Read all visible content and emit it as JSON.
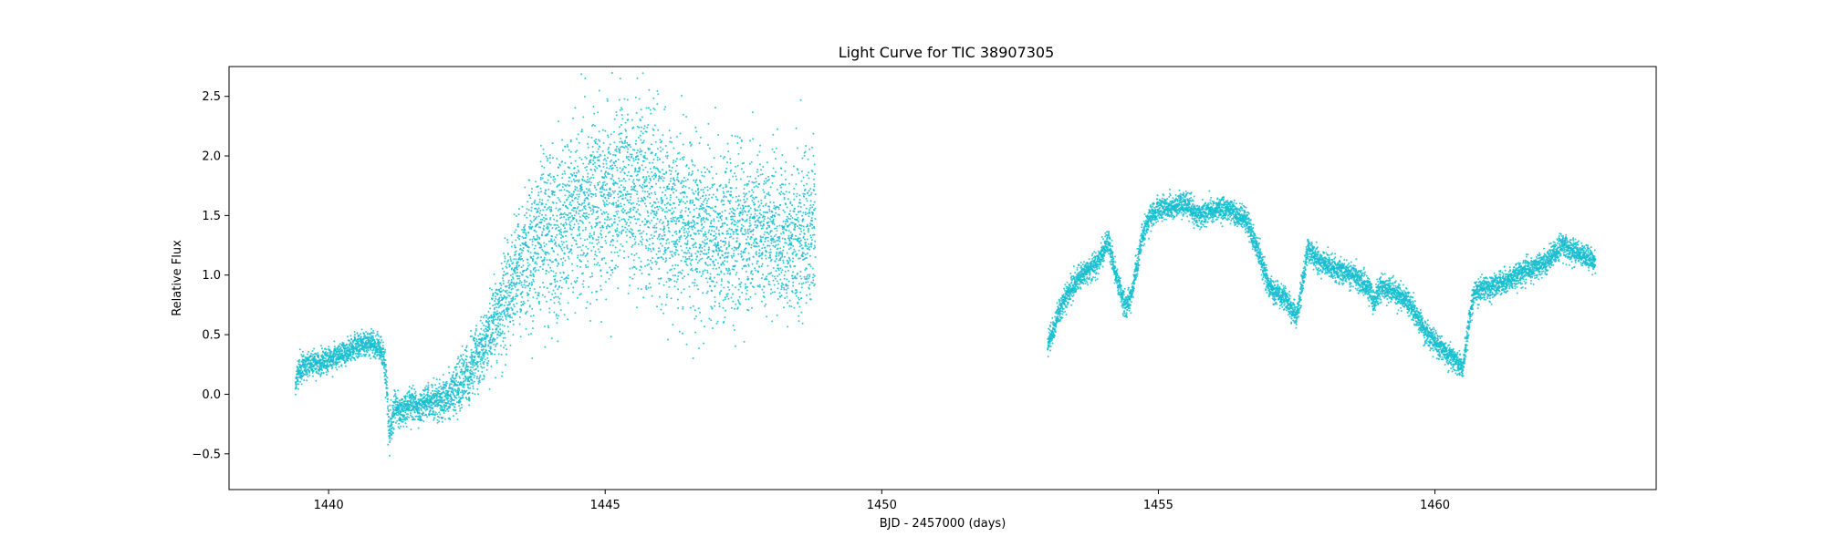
{
  "chart_data": {
    "type": "scatter",
    "title": "Light Curve for TIC 38907305",
    "xlabel": "BJD - 2457000 (days)",
    "ylabel": "Relative Flux",
    "xlim": [
      1438.2,
      1464.0
    ],
    "ylim": [
      -0.8,
      2.75
    ],
    "xticks": [
      1440,
      1445,
      1450,
      1455,
      1460
    ],
    "yticks": [
      -0.5,
      0.0,
      0.5,
      1.0,
      1.5,
      2.0,
      2.5
    ],
    "grid": false,
    "legend": "none",
    "marker_color": "#17becf",
    "series": [
      {
        "name": "",
        "segments": [
          {
            "x": [
              1439.4,
              1439.45,
              1439.5,
              1439.7,
              1440.0,
              1440.3,
              1440.5,
              1440.7,
              1440.9,
              1441.0,
              1441.05,
              1441.1,
              1441.2,
              1441.35,
              1441.5,
              1441.6,
              1441.8,
              1442.0,
              1442.2,
              1442.5,
              1442.8,
              1443.1,
              1443.4,
              1443.7,
              1444.0,
              1444.1,
              1444.2,
              1444.4,
              1444.7,
              1445.0,
              1445.3,
              1445.6,
              1445.9,
              1446.2,
              1446.5,
              1446.8,
              1447.1,
              1447.4,
              1447.7,
              1448.0,
              1448.3,
              1448.6,
              1448.8
            ],
            "y": [
              0.05,
              0.2,
              0.22,
              0.25,
              0.28,
              0.35,
              0.4,
              0.42,
              0.4,
              0.3,
              0.05,
              -0.35,
              -0.1,
              -0.15,
              -0.08,
              -0.12,
              -0.05,
              -0.08,
              0.0,
              0.15,
              0.4,
              0.7,
              1.0,
              1.25,
              1.4,
              1.3,
              1.45,
              1.55,
              1.6,
              1.65,
              1.68,
              1.65,
              1.6,
              1.5,
              1.4,
              1.35,
              1.3,
              1.38,
              1.4,
              1.35,
              1.3,
              1.32,
              1.4
            ],
            "scatter": [
              0.06,
              0.06,
              0.06,
              0.05,
              0.05,
              0.05,
              0.05,
              0.05,
              0.05,
              0.06,
              0.1,
              0.08,
              0.07,
              0.07,
              0.07,
              0.07,
              0.07,
              0.08,
              0.1,
              0.12,
              0.15,
              0.2,
              0.25,
              0.3,
              0.35,
              0.35,
              0.35,
              0.35,
              0.35,
              0.38,
              0.38,
              0.38,
              0.38,
              0.36,
              0.35,
              0.35,
              0.35,
              0.35,
              0.33,
              0.32,
              0.32,
              0.32,
              0.3
            ]
          },
          {
            "x": [
              1453.0,
              1453.1,
              1453.3,
              1453.6,
              1453.9,
              1454.1,
              1454.2,
              1454.4,
              1454.5,
              1454.7,
              1454.8,
              1455.0,
              1455.3,
              1455.5,
              1455.7,
              1456.0,
              1456.3,
              1456.6,
              1456.8,
              1457.0,
              1457.3,
              1457.5,
              1457.6,
              1457.7,
              1457.9,
              1458.2,
              1458.5,
              1458.8,
              1458.9,
              1459.0,
              1459.2,
              1459.5,
              1459.8,
              1460.1,
              1460.4,
              1460.5,
              1460.6,
              1460.7,
              1461.0,
              1461.3,
              1461.7,
              1462.0,
              1462.3,
              1462.6,
              1462.9
            ],
            "y": [
              0.4,
              0.55,
              0.8,
              1.0,
              1.1,
              1.3,
              1.05,
              0.75,
              0.8,
              1.3,
              1.45,
              1.55,
              1.58,
              1.6,
              1.5,
              1.55,
              1.55,
              1.45,
              1.2,
              0.9,
              0.8,
              0.65,
              0.9,
              1.22,
              1.12,
              1.05,
              1.0,
              0.9,
              0.75,
              0.9,
              0.88,
              0.78,
              0.55,
              0.38,
              0.28,
              0.2,
              0.55,
              0.85,
              0.9,
              0.95,
              1.05,
              1.1,
              1.25,
              1.18,
              1.12
            ],
            "scatter": [
              0.05,
              0.05,
              0.05,
              0.05,
              0.05,
              0.05,
              0.05,
              0.05,
              0.05,
              0.05,
              0.05,
              0.05,
              0.05,
              0.05,
              0.05,
              0.05,
              0.05,
              0.05,
              0.05,
              0.05,
              0.05,
              0.05,
              0.05,
              0.05,
              0.05,
              0.05,
              0.05,
              0.05,
              0.05,
              0.05,
              0.05,
              0.05,
              0.05,
              0.05,
              0.05,
              0.05,
              0.05,
              0.05,
              0.05,
              0.05,
              0.05,
              0.05,
              0.05,
              0.05,
              0.05
            ]
          }
        ]
      }
    ]
  }
}
